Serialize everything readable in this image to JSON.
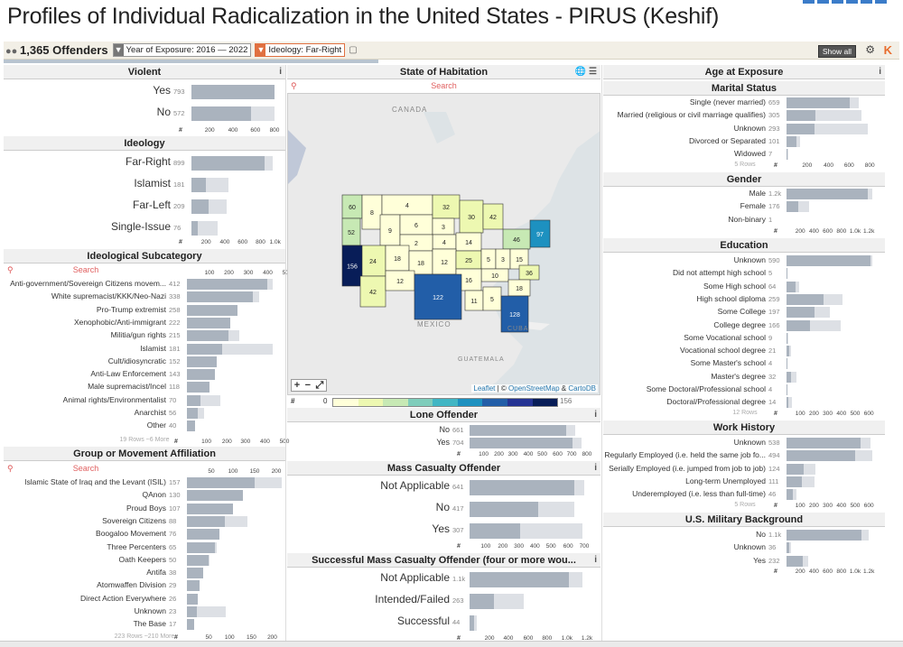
{
  "title": "Profiles of Individual Radicalization in the United States - PIRUS (Keshif)",
  "toolbar": {
    "count": "1,365 Offenders",
    "filter1": "Year of Exposure: 2016 — 2022",
    "filter2": "Ideology: Far-Right",
    "show_all": "Show all"
  },
  "violent": {
    "title": "Violent",
    "rows": [
      {
        "label": "Yes",
        "count": "793",
        "v": 793,
        "t": 793
      },
      {
        "label": "No",
        "count": "572",
        "v": 572,
        "t": 840
      }
    ],
    "ticks": [
      "200",
      "400",
      "600",
      "800"
    ]
  },
  "ideology": {
    "title": "Ideology",
    "rows": [
      {
        "label": "Far-Right",
        "count": "899",
        "v": 899,
        "t": 1000
      },
      {
        "label": "Islamist",
        "count": "181",
        "v": 181,
        "t": 460
      },
      {
        "label": "Far-Left",
        "count": "209",
        "v": 209,
        "t": 430
      },
      {
        "label": "Single-Issue",
        "count": "76",
        "v": 76,
        "t": 320
      }
    ],
    "ticks": [
      "200",
      "400",
      "600",
      "800",
      "1.0k"
    ]
  },
  "subcat": {
    "title": "Ideological Subcategory",
    "search": "Search",
    "ticks": [
      "100",
      "200",
      "300",
      "400",
      "500"
    ],
    "more": "19 Rows ~6 More",
    "rows": [
      {
        "label": "Anti-government/Sovereign Citizens movem...",
        "count": "412",
        "v": 412,
        "t": 440
      },
      {
        "label": "White supremacist/KKK/Neo-Nazi",
        "count": "338",
        "v": 338,
        "t": 370
      },
      {
        "label": "Pro-Trump extremist",
        "count": "258",
        "v": 258,
        "t": 258
      },
      {
        "label": "Xenophobic/Anti-immigrant",
        "count": "222",
        "v": 222,
        "t": 222
      },
      {
        "label": "Militia/gun rights",
        "count": "215",
        "v": 215,
        "t": 270
      },
      {
        "label": "Islamist",
        "count": "181",
        "v": 181,
        "t": 440
      },
      {
        "label": "Cult/idiosyncratic",
        "count": "152",
        "v": 152,
        "t": 152
      },
      {
        "label": "Anti-Law Enforcement",
        "count": "143",
        "v": 143,
        "t": 143
      },
      {
        "label": "Male supremacist/Incel",
        "count": "118",
        "v": 118,
        "t": 118
      },
      {
        "label": "Animal rights/Environmentalist",
        "count": "70",
        "v": 70,
        "t": 170
      },
      {
        "label": "Anarchist",
        "count": "56",
        "v": 56,
        "t": 90
      },
      {
        "label": "Other",
        "count": "40",
        "v": 40,
        "t": 40
      }
    ]
  },
  "group": {
    "title": "Group or Movement Affiliation",
    "search": "Search",
    "ticks": [
      "50",
      "100",
      "150",
      "200"
    ],
    "more": "223 Rows ~210 More",
    "rows": [
      {
        "label": "Islamic State of Iraq and the Levant (ISIL)",
        "count": "157",
        "v": 157,
        "t": 220
      },
      {
        "label": "QAnon",
        "count": "130",
        "v": 130,
        "t": 130
      },
      {
        "label": "Proud Boys",
        "count": "107",
        "v": 107,
        "t": 107
      },
      {
        "label": "Sovereign Citizens",
        "count": "88",
        "v": 88,
        "t": 140
      },
      {
        "label": "Boogaloo Movement",
        "count": "76",
        "v": 76,
        "t": 76
      },
      {
        "label": "Three Percenters",
        "count": "65",
        "v": 65,
        "t": 70
      },
      {
        "label": "Oath Keepers",
        "count": "50",
        "v": 50,
        "t": 52
      },
      {
        "label": "Antifa",
        "count": "38",
        "v": 38,
        "t": 38
      },
      {
        "label": "Atomwaffen Division",
        "count": "29",
        "v": 29,
        "t": 29
      },
      {
        "label": "Direct Action Everywhere",
        "count": "26",
        "v": 26,
        "t": 26
      },
      {
        "label": "Unknown",
        "count": "23",
        "v": 23,
        "t": 90
      },
      {
        "label": "The Base",
        "count": "17",
        "v": 17,
        "t": 17
      }
    ]
  },
  "state": {
    "title": "State of Habitation",
    "search": "Search",
    "canada": "CANADA",
    "mexico": "MEXICO",
    "cuba": "CUBA",
    "guatemala": "GUATEMALA",
    "attrib1": "Leaflet",
    "attrib2": " | © ",
    "attrib3": "OpenStreetMap",
    "attrib4": " & ",
    "attrib5": "CartoDB",
    "legend_min": "0",
    "legend_max": "156",
    "colors": [
      "#ffffd9",
      "#edf8b1",
      "#c7e9b4",
      "#7fcdbb",
      "#41b6c4",
      "#1d91c0",
      "#225ea8",
      "#253494",
      "#081d58"
    ],
    "labels": [
      {
        "t": "60",
        "c": 2
      },
      {
        "t": "52",
        "c": 2
      },
      {
        "t": "8",
        "c": 0
      },
      {
        "t": "4",
        "c": 0
      },
      {
        "t": "9",
        "c": 0
      },
      {
        "t": "6",
        "c": 0
      },
      {
        "t": "32",
        "c": 1
      },
      {
        "t": "3",
        "c": 0
      },
      {
        "t": "30",
        "c": 1
      },
      {
        "t": "42",
        "c": 1
      },
      {
        "t": "4",
        "c": 0
      },
      {
        "t": "2",
        "c": 0
      },
      {
        "t": "14",
        "c": 0
      },
      {
        "t": "97",
        "c": 5
      },
      {
        "t": "46",
        "c": 2
      },
      {
        "t": "24",
        "c": 1
      },
      {
        "t": "18",
        "c": 0
      },
      {
        "t": "18",
        "c": 0
      },
      {
        "t": "12",
        "c": 0
      },
      {
        "t": "25",
        "c": 1
      },
      {
        "t": "156",
        "c": 8
      },
      {
        "t": "5",
        "c": 0
      },
      {
        "t": "3",
        "c": 0
      },
      {
        "t": "15",
        "c": 0
      },
      {
        "t": "36",
        "c": 1
      },
      {
        "t": "42",
        "c": 1
      },
      {
        "t": "12",
        "c": 0
      },
      {
        "t": "10",
        "c": 0
      },
      {
        "t": "16",
        "c": 0
      },
      {
        "t": "122",
        "c": 6
      },
      {
        "t": "18",
        "c": 0
      },
      {
        "t": "11",
        "c": 0
      },
      {
        "t": "5",
        "c": 0
      },
      {
        "t": "128",
        "c": 6
      }
    ]
  },
  "lone": {
    "title": "Lone Offender",
    "ticks": [
      "100",
      "200",
      "300",
      "400",
      "500",
      "600",
      "700",
      "800"
    ],
    "rows": [
      {
        "label": "No",
        "count": "661",
        "v": 661,
        "t": 720
      },
      {
        "label": "Yes",
        "count": "704",
        "v": 704,
        "t": 760
      }
    ]
  },
  "mass": {
    "title": "Mass Casualty Offender",
    "ticks": [
      "100",
      "200",
      "300",
      "400",
      "500",
      "600",
      "700"
    ],
    "rows": [
      {
        "label": "Not Applicable",
        "count": "641",
        "v": 641,
        "t": 700
      },
      {
        "label": "No",
        "count": "417",
        "v": 417,
        "t": 640
      },
      {
        "label": "Yes",
        "count": "307",
        "v": 307,
        "t": 690
      }
    ]
  },
  "smass": {
    "title": "Successful Mass Casualty Offender (four or more wou...",
    "ticks": [
      "200",
      "400",
      "600",
      "800",
      "1.0k",
      "1.2k"
    ],
    "rows": [
      {
        "label": "Not Applicable",
        "count": "1.1k",
        "v": 1058,
        "t": 1200
      },
      {
        "label": "Intended/Failed",
        "count": "263",
        "v": 263,
        "t": 580
      },
      {
        "label": "Successful",
        "count": "44",
        "v": 44,
        "t": 80
      }
    ]
  },
  "age": {
    "title": "Age at Exposure"
  },
  "marital": {
    "title": "Marital Status",
    "more": "5 Rows",
    "ticks": [
      "200",
      "400",
      "600",
      "800"
    ],
    "rows": [
      {
        "label": "Single (never married)",
        "count": "659",
        "v": 659,
        "t": 759
      },
      {
        "label": "Married (religious or civil marriage qualifies)",
        "count": "305",
        "v": 305,
        "t": 790
      },
      {
        "label": "Unknown",
        "count": "293",
        "v": 293,
        "t": 850
      },
      {
        "label": "Divorced or Separated",
        "count": "101",
        "v": 101,
        "t": 140
      },
      {
        "label": "Widowed",
        "count": "7",
        "v": 7,
        "t": 15
      }
    ]
  },
  "gender": {
    "title": "Gender",
    "ticks": [
      "200",
      "400",
      "600",
      "800",
      "1.0k",
      "1.2k"
    ],
    "rows": [
      {
        "label": "Male",
        "count": "1.2k",
        "v": 1188,
        "t": 1250
      },
      {
        "label": "Female",
        "count": "176",
        "v": 176,
        "t": 330
      },
      {
        "label": "Non-binary",
        "count": "1",
        "v": 1,
        "t": 1
      }
    ]
  },
  "education": {
    "title": "Education",
    "more": "12 Rows",
    "ticks": [
      "100",
      "200",
      "300",
      "400",
      "500",
      "600"
    ],
    "rows": [
      {
        "label": "Unknown",
        "count": "590",
        "v": 590,
        "t": 600
      },
      {
        "label": "Did not attempt high school",
        "count": "5",
        "v": 5,
        "t": 6
      },
      {
        "label": "Some High school",
        "count": "64",
        "v": 64,
        "t": 90
      },
      {
        "label": "High school diploma",
        "count": "259",
        "v": 259,
        "t": 390
      },
      {
        "label": "Some College",
        "count": "197",
        "v": 197,
        "t": 300
      },
      {
        "label": "College degree",
        "count": "166",
        "v": 166,
        "t": 380
      },
      {
        "label": "Some Vocational school",
        "count": "9",
        "v": 9,
        "t": 12
      },
      {
        "label": "Vocational school degree",
        "count": "21",
        "v": 21,
        "t": 30
      },
      {
        "label": "Some Master's school",
        "count": "4",
        "v": 4,
        "t": 6
      },
      {
        "label": "Master's degree",
        "count": "32",
        "v": 32,
        "t": 70
      },
      {
        "label": "Some Doctoral/Professional school",
        "count": "4",
        "v": 4,
        "t": 6
      },
      {
        "label": "Doctoral/Professional degree",
        "count": "14",
        "v": 14,
        "t": 40
      }
    ]
  },
  "work": {
    "title": "Work History",
    "more": "5 Rows",
    "ticks": [
      "100",
      "200",
      "300",
      "400",
      "500",
      "600"
    ],
    "rows": [
      {
        "label": "Unknown",
        "count": "538",
        "v": 538,
        "t": 610
      },
      {
        "label": "Regularly Employed (i.e. held the same job fo...",
        "count": "494",
        "v": 494,
        "t": 620
      },
      {
        "label": "Serially Employed (i.e. jumped from job to job)",
        "count": "124",
        "v": 124,
        "t": 210
      },
      {
        "label": "Long-term Unemployed",
        "count": "111",
        "v": 111,
        "t": 200
      },
      {
        "label": "Underemployed (i.e. less than full-time)",
        "count": "46",
        "v": 46,
        "t": 70
      }
    ]
  },
  "military": {
    "title": "U.S. Military Background",
    "ticks": [
      "200",
      "400",
      "600",
      "800",
      "1.0k",
      "1.2k"
    ],
    "rows": [
      {
        "label": "No",
        "count": "1.1k",
        "v": 1097,
        "t": 1200
      },
      {
        "label": "Unknown",
        "count": "36",
        "v": 36,
        "t": 60
      },
      {
        "label": "Yes",
        "count": "232",
        "v": 232,
        "t": 310
      }
    ]
  }
}
